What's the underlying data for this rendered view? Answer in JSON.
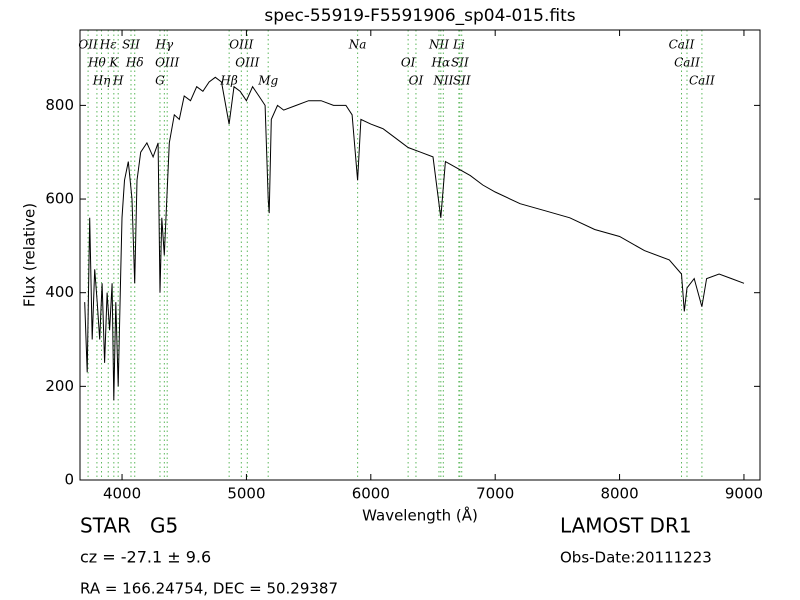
{
  "chart_data": {
    "type": "line",
    "title": "spec-55919-F5591906_sp04-015.fits",
    "x_label": "Wavelength (Å)",
    "y_label": "Flux (relative)",
    "xlim": [
      3662,
      9129
    ],
    "ylim": [
      0,
      961
    ],
    "xticks": [
      4000,
      5000,
      6000,
      7000,
      8000,
      9000
    ],
    "yticks": [
      0,
      200,
      400,
      600,
      800
    ],
    "series": [
      {
        "color": "#000000",
        "x": [
          3700,
          3720,
          3740,
          3760,
          3780,
          3800,
          3820,
          3840,
          3860,
          3880,
          3900,
          3920,
          3934,
          3950,
          3969,
          3990,
          4000,
          4020,
          4050,
          4080,
          4102,
          4120,
          4150,
          4200,
          4250,
          4290,
          4305,
          4320,
          4340,
          4380,
          4420,
          4460,
          4500,
          4550,
          4600,
          4650,
          4700,
          4750,
          4800,
          4861,
          4900,
          4950,
          5000,
          5050,
          5100,
          5150,
          5175,
          5183,
          5200,
          5250,
          5300,
          5400,
          5500,
          5600,
          5700,
          5800,
          5850,
          5894,
          5920,
          6000,
          6100,
          6200,
          6300,
          6400,
          6500,
          6563,
          6600,
          6700,
          6800,
          6900,
          7000,
          7200,
          7400,
          7600,
          7800,
          8000,
          8200,
          8400,
          8498,
          8520,
          8542,
          8600,
          8662,
          8700,
          8800,
          8900,
          9000
        ],
        "values": [
          380,
          230,
          560,
          300,
          450,
          380,
          300,
          420,
          250,
          400,
          320,
          420,
          170,
          380,
          200,
          450,
          560,
          640,
          680,
          600,
          420,
          640,
          700,
          720,
          690,
          720,
          400,
          560,
          480,
          720,
          780,
          770,
          820,
          810,
          840,
          830,
          850,
          860,
          850,
          760,
          840,
          830,
          810,
          840,
          820,
          800,
          600,
          570,
          770,
          800,
          790,
          800,
          810,
          810,
          800,
          800,
          780,
          640,
          770,
          760,
          750,
          730,
          710,
          700,
          690,
          560,
          680,
          665,
          650,
          630,
          615,
          590,
          575,
          560,
          535,
          520,
          490,
          470,
          440,
          360,
          410,
          430,
          370,
          430,
          440,
          430,
          420
        ]
      }
    ],
    "line_color": "#5cb85c",
    "lines": [
      {
        "label": "OII",
        "wavelength": 3727
      },
      {
        "label": "Hθ",
        "wavelength": 3798
      },
      {
        "label": "Hη",
        "wavelength": 3835
      },
      {
        "label": "Hε",
        "wavelength": 3889
      },
      {
        "label": "K",
        "wavelength": 3934
      },
      {
        "label": "H",
        "wavelength": 3969
      },
      {
        "label": "SII",
        "wavelength": 4072
      },
      {
        "label": "Hδ",
        "wavelength": 4102
      },
      {
        "label": "G",
        "wavelength": 4305
      },
      {
        "label": "Hγ",
        "wavelength": 4340
      },
      {
        "label": "OIII",
        "wavelength": 4363
      },
      {
        "label": "Hβ",
        "wavelength": 4861
      },
      {
        "label": "OIII",
        "wavelength": 4959
      },
      {
        "label": "OIII",
        "wavelength": 5007
      },
      {
        "label": "Mg",
        "wavelength": 5175
      },
      {
        "label": "Na",
        "wavelength": 5894
      },
      {
        "label": "OI",
        "wavelength": 6300
      },
      {
        "label": "OI",
        "wavelength": 6363
      },
      {
        "label": "NII",
        "wavelength": 6548
      },
      {
        "label": "Hα",
        "wavelength": 6563
      },
      {
        "label": "NII",
        "wavelength": 6583
      },
      {
        "label": "Li",
        "wavelength": 6708
      },
      {
        "label": "SII",
        "wavelength": 6716
      },
      {
        "label": "SII",
        "wavelength": 6731
      },
      {
        "label": "CaII",
        "wavelength": 8498
      },
      {
        "label": "CaII",
        "wavelength": 8542
      },
      {
        "label": "CaII",
        "wavelength": 8662
      }
    ],
    "annotations": {
      "object": "STAR   G5",
      "redshift": "cz = -27.1 ± 9.6",
      "coords": "RA = 166.24754, DEC = 50.29387",
      "survey": "LAMOST DR1",
      "obs_date": "Obs-Date:20111223"
    }
  }
}
